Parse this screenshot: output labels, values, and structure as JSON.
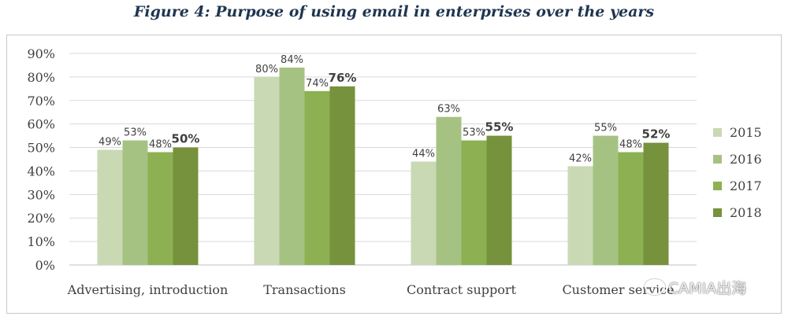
{
  "chart_data": {
    "type": "bar",
    "title": "Figure 4: Purpose of using email in enterprises over the years",
    "categories": [
      "Advertising, introduction",
      "Transactions",
      "Contract support",
      "Customer service"
    ],
    "series": [
      {
        "name": "2015",
        "color": "#c9d9b4",
        "values": [
          49,
          80,
          44,
          42
        ],
        "labels": [
          "49%",
          "80%",
          "44%",
          "42%"
        ]
      },
      {
        "name": "2016",
        "color": "#a6c283",
        "values": [
          53,
          84,
          63,
          55
        ],
        "labels": [
          "53%",
          "84%",
          "63%",
          "55%"
        ]
      },
      {
        "name": "2017",
        "color": "#8cb052",
        "values": [
          48,
          74,
          53,
          48
        ],
        "labels": [
          "48%",
          "74%",
          "53%",
          "48%"
        ]
      },
      {
        "name": "2018",
        "color": "#76923c",
        "values": [
          50,
          76,
          55,
          52
        ],
        "labels": [
          "50%",
          "76%",
          "55%",
          "52%"
        ],
        "bold": true
      }
    ],
    "ylim": [
      0,
      90
    ],
    "yticks": [
      "0%",
      "10%",
      "20%",
      "30%",
      "40%",
      "50%",
      "60%",
      "70%",
      "80%",
      "90%"
    ],
    "grid": true,
    "legend": "right"
  },
  "watermark": "CAMIA出海"
}
